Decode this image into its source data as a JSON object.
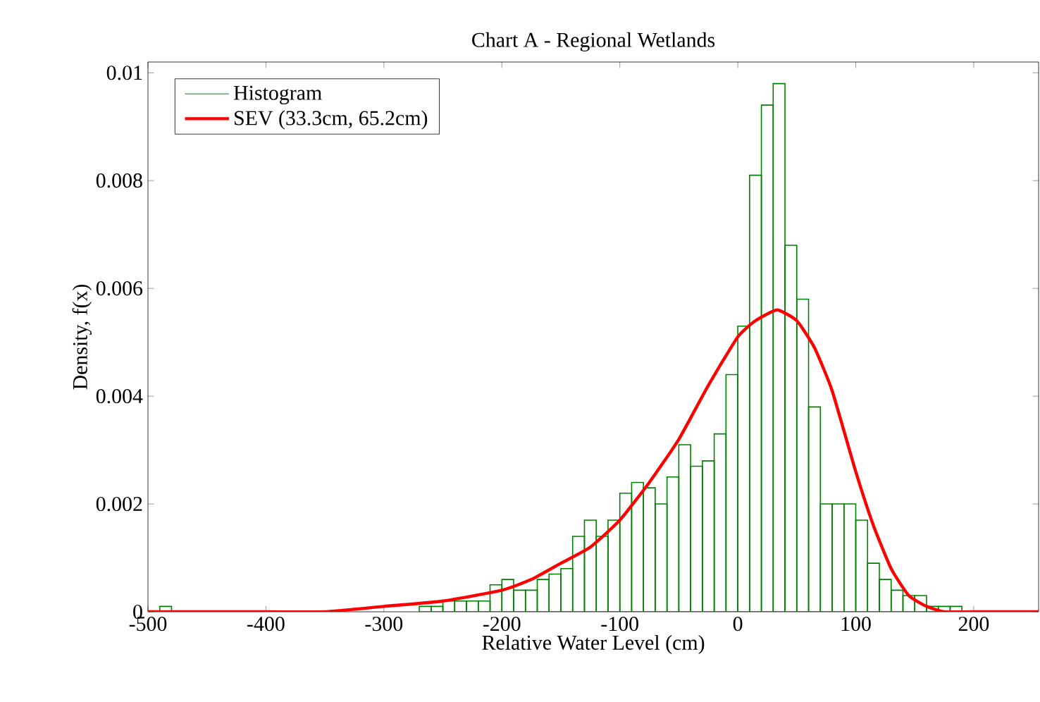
{
  "chart_data": {
    "type": "histogram",
    "title": "Chart A - Regional Wetlands",
    "xlabel": "Relative Water Level (cm)",
    "ylabel": "Density, f(x)",
    "xlim": [
      -500,
      255
    ],
    "ylim": [
      0,
      0.0102
    ],
    "xticks": [
      -500,
      -400,
      -300,
      -200,
      -100,
      0,
      100,
      200
    ],
    "yticks": [
      0,
      0.002,
      0.004,
      0.006,
      0.008,
      0.01
    ],
    "grid": false,
    "legend": "top left",
    "series": [
      {
        "name": "Histogram",
        "color": "#008000",
        "bins": [
          -500,
          -490,
          -480,
          -470,
          -460,
          -450,
          -440,
          -430,
          -420,
          -410,
          -400,
          -390,
          -380,
          -370,
          -360,
          -350,
          -340,
          -330,
          -320,
          -310,
          -300,
          -290,
          -280,
          -270,
          -260,
          -250,
          -240,
          -230,
          -220,
          -210,
          -200,
          -190,
          -180,
          -170,
          -160,
          -150,
          -140,
          -130,
          -120,
          -110,
          -100,
          -90,
          -80,
          -70,
          -60,
          -50,
          -40,
          -30,
          -20,
          -10,
          0,
          10,
          20,
          30,
          40,
          50,
          60,
          70,
          80,
          90,
          100,
          110,
          120,
          130,
          140,
          150,
          160,
          170,
          180,
          190,
          200,
          210,
          220,
          230,
          240,
          250
        ],
        "values": [
          0,
          0.0001,
          0,
          0,
          0,
          0,
          0,
          0,
          0,
          0,
          0,
          0,
          0,
          0,
          0,
          0,
          0,
          0,
          0,
          0,
          0,
          0,
          0,
          0.0001,
          0.0001,
          0.0002,
          0.0002,
          0.0002,
          0.0002,
          0.0005,
          0.0006,
          0.0004,
          0.0004,
          0.0006,
          0.0007,
          0.0008,
          0.0014,
          0.0017,
          0.0014,
          0.0017,
          0.0022,
          0.0024,
          0.0023,
          0.002,
          0.0025,
          0.0031,
          0.0027,
          0.0028,
          0.0033,
          0.0044,
          0.0053,
          0.0081,
          0.0094,
          0.0098,
          0.0068,
          0.0058,
          0.0038,
          0.002,
          0.002,
          0.002,
          0.0017,
          0.0009,
          0.0006,
          0.0004,
          0.0003,
          0.0003,
          0.0001,
          0.0001,
          0.0001,
          0,
          0,
          0,
          0,
          0,
          0
        ]
      },
      {
        "type": "line",
        "name": "SEV (33.3cm, 65.2cm)",
        "color": "#ff0000",
        "line_style": "solid",
        "x": [
          -500,
          -400,
          -350,
          -300,
          -250,
          -200,
          -175,
          -150,
          -125,
          -100,
          -75,
          -50,
          -25,
          0,
          15,
          33.3,
          50,
          65,
          80,
          100,
          115,
          130,
          145,
          160,
          175,
          200,
          255
        ],
        "values": [
          0,
          0,
          0,
          0.0001,
          0.0002,
          0.0004,
          0.0006,
          0.0009,
          0.0012,
          0.0017,
          0.0024,
          0.0032,
          0.0042,
          0.0051,
          0.0054,
          0.0056,
          0.0054,
          0.0049,
          0.0041,
          0.0026,
          0.0016,
          0.0008,
          0.0003,
          0.0001,
          0,
          0,
          0
        ]
      }
    ]
  }
}
